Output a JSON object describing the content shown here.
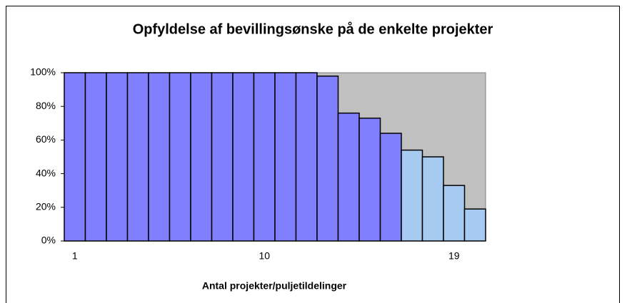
{
  "chart_data": {
    "type": "bar",
    "title": "Opfyldelse af bevillingsønske på de enkelte projekter",
    "x_label": "Antal projekter/puljetildelinger",
    "categories": [
      "1",
      null,
      null,
      null,
      null,
      null,
      null,
      null,
      null,
      "10",
      null,
      null,
      null,
      null,
      null,
      null,
      null,
      null,
      "19",
      null
    ],
    "values": [
      100,
      100,
      100,
      100,
      100,
      100,
      100,
      100,
      100,
      100,
      100,
      100,
      98,
      76,
      73,
      64,
      54,
      50,
      33,
      19
    ],
    "colors": [
      "#8080ff",
      "#8080ff",
      "#8080ff",
      "#8080ff",
      "#8080ff",
      "#8080ff",
      "#8080ff",
      "#8080ff",
      "#8080ff",
      "#8080ff",
      "#8080ff",
      "#8080ff",
      "#8080ff",
      "#8080ff",
      "#8080ff",
      "#8080ff",
      "#a6caf0",
      "#a6caf0",
      "#a6caf0",
      "#a6caf0"
    ],
    "ylim": [
      0,
      100
    ],
    "yticks": [
      {
        "value": 0,
        "label": "0%"
      },
      {
        "value": 20,
        "label": "20%"
      },
      {
        "value": 40,
        "label": "40%"
      },
      {
        "value": 60,
        "label": "60%"
      },
      {
        "value": 80,
        "label": "80%"
      },
      {
        "value": 100,
        "label": "100%"
      }
    ],
    "plot_background": "#c0c0c0"
  }
}
